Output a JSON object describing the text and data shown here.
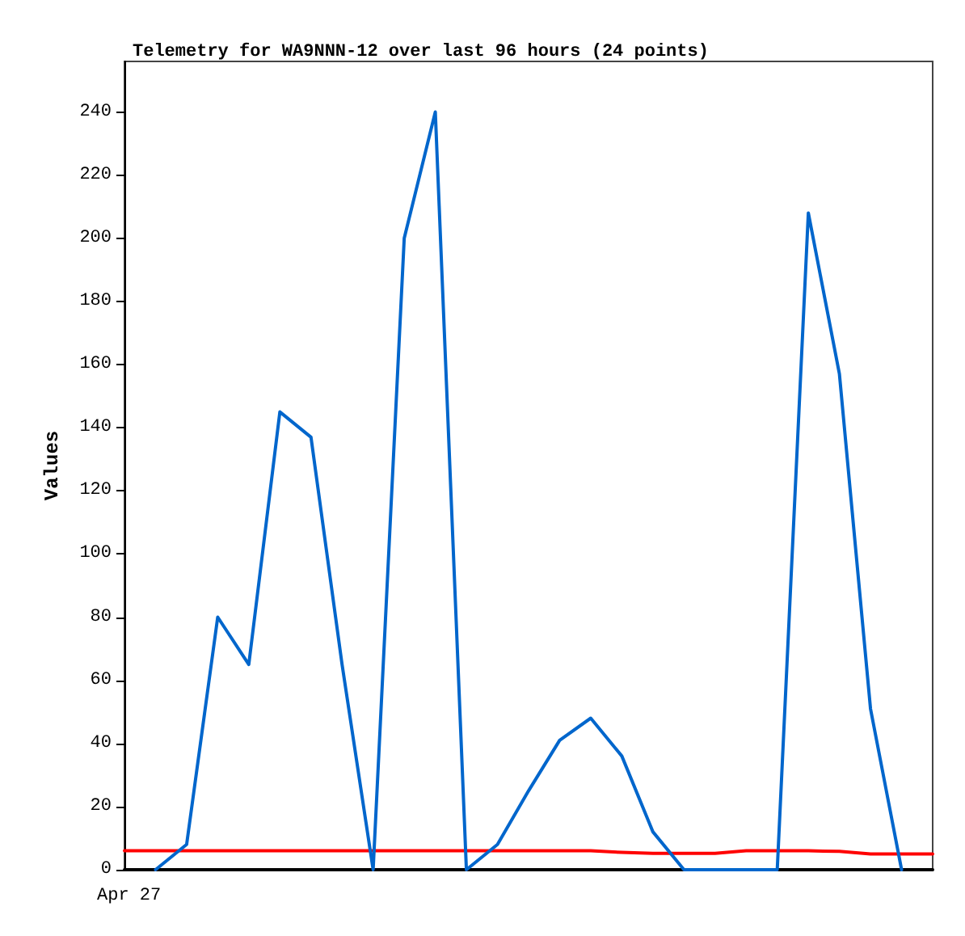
{
  "chart_data": {
    "type": "line",
    "title": "Telemetry for WA9NNN-12 over last 96 hours (24 points)",
    "ylabel": "Values",
    "annotations": [
      "Apr 27"
    ],
    "categories": [
      null,
      null,
      null,
      null,
      null,
      null,
      null,
      null,
      null,
      null,
      null,
      null,
      null,
      null,
      null,
      null,
      null,
      null,
      null,
      null,
      null,
      null,
      null,
      null,
      null,
      null,
      null
    ],
    "ylim": [
      0,
      256
    ],
    "yticks": [
      0,
      20,
      40,
      60,
      80,
      100,
      120,
      140,
      160,
      180,
      200,
      220,
      240
    ],
    "marker": "none",
    "series": [
      {
        "color": "#000000",
        "values": [
          0,
          0,
          0,
          0,
          0,
          0,
          0,
          0,
          0,
          0,
          0,
          0,
          0,
          0,
          0,
          0,
          0,
          0,
          0,
          0,
          0,
          0,
          0,
          0,
          0,
          0,
          0
        ]
      },
      {
        "color": "#ff0000",
        "values": [
          6,
          6,
          6,
          6,
          6,
          6,
          6,
          6,
          6,
          6,
          6,
          6,
          6,
          6,
          6,
          6,
          5.5,
          5.2,
          5.2,
          5.2,
          6,
          6,
          6,
          5.8,
          5,
          5,
          5
        ]
      },
      {
        "color": "#0066cc",
        "values": [
          null,
          0,
          8,
          80,
          65,
          145,
          137,
          65,
          0,
          200,
          240,
          0,
          8,
          25,
          41,
          48,
          36,
          12,
          0,
          0,
          0,
          0,
          208,
          157,
          51,
          0,
          null
        ]
      }
    ]
  }
}
